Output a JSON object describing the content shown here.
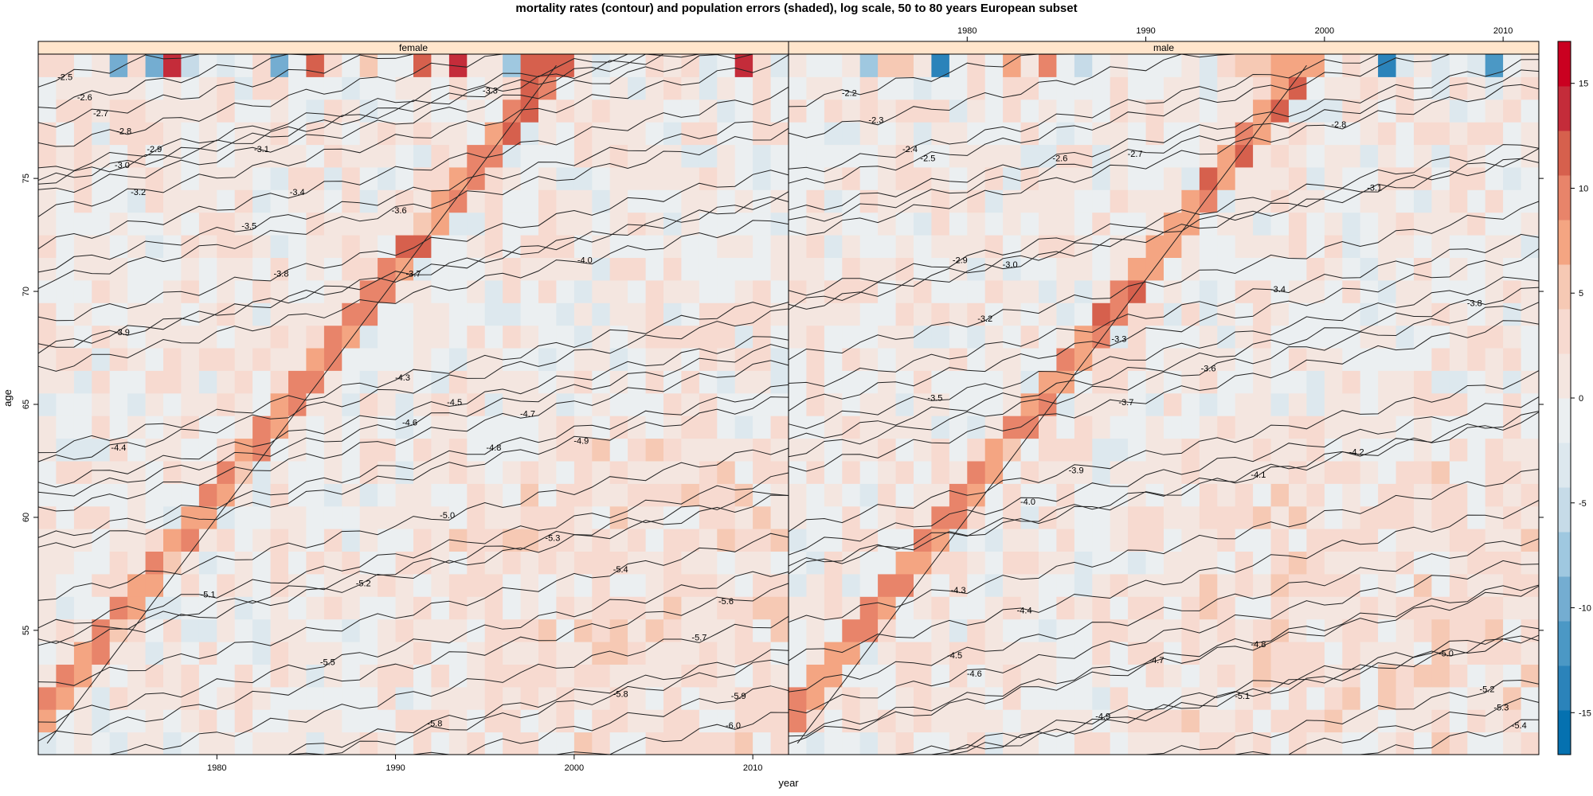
{
  "chart_data": {
    "type": "heatmap",
    "title": "mortality rates (contour) and population errors (shaded), log scale, 50 to 80 years European subset",
    "xlabel": "year",
    "ylabel": "age",
    "xlim": [
      1970,
      2012
    ],
    "ylim": [
      49.5,
      80.5
    ],
    "x_ticks": [
      1980,
      1990,
      2000,
      2010
    ],
    "y_ticks": [
      55,
      60,
      65,
      70,
      75
    ],
    "panels": [
      {
        "name": "female",
        "bottom_axis_ticks": true,
        "contour_labels": [
          {
            "label": "-2.5",
            "x": 1971.5,
            "y": 79.5
          },
          {
            "label": "-2.6",
            "x": 1972.6,
            "y": 78.6
          },
          {
            "label": "-2.7",
            "x": 1973.5,
            "y": 77.9
          },
          {
            "label": "-2.8",
            "x": 1974.8,
            "y": 77.1
          },
          {
            "label": "-2.9",
            "x": 1976.5,
            "y": 76.3
          },
          {
            "label": "-3.0",
            "x": 1974.7,
            "y": 75.6
          },
          {
            "label": "-3.1",
            "x": 1982.5,
            "y": 76.3
          },
          {
            "label": "-3.2",
            "x": 1975.6,
            "y": 74.4
          },
          {
            "label": "-3.3",
            "x": 1995.3,
            "y": 78.9
          },
          {
            "label": "-3.4",
            "x": 1984.5,
            "y": 74.4
          },
          {
            "label": "-3.5",
            "x": 1981.8,
            "y": 72.9
          },
          {
            "label": "-3.6",
            "x": 1990.2,
            "y": 73.6
          },
          {
            "label": "-3.7",
            "x": 1991.0,
            "y": 70.8
          },
          {
            "label": "-3.8",
            "x": 1983.6,
            "y": 70.8
          },
          {
            "label": "-3.9",
            "x": 1974.7,
            "y": 68.2
          },
          {
            "label": "-4.0",
            "x": 2000.6,
            "y": 71.4
          },
          {
            "label": "-4.3",
            "x": 1990.4,
            "y": 66.2
          },
          {
            "label": "-4.4",
            "x": 1974.5,
            "y": 63.1
          },
          {
            "label": "-4.5",
            "x": 1993.3,
            "y": 65.1
          },
          {
            "label": "-4.6",
            "x": 1990.8,
            "y": 64.2
          },
          {
            "label": "-4.7",
            "x": 1997.4,
            "y": 64.6
          },
          {
            "label": "-4.8",
            "x": 1995.5,
            "y": 63.1
          },
          {
            "label": "-4.9",
            "x": 2000.4,
            "y": 63.4
          },
          {
            "label": "-5.0",
            "x": 1992.9,
            "y": 60.1
          },
          {
            "label": "-5.1",
            "x": 1979.5,
            "y": 56.6
          },
          {
            "label": "-5.2",
            "x": 1988.2,
            "y": 57.1
          },
          {
            "label": "-5.3",
            "x": 1998.8,
            "y": 59.1
          },
          {
            "label": "-5.4",
            "x": 2002.6,
            "y": 57.7
          },
          {
            "label": "-5.5",
            "x": 1986.2,
            "y": 53.6
          },
          {
            "label": "-5.6",
            "x": 2008.5,
            "y": 56.3
          },
          {
            "label": "-5.7",
            "x": 2007.0,
            "y": 54.7
          },
          {
            "label": "-5.8",
            "x": 2002.6,
            "y": 52.2
          },
          {
            "label": "-5.8",
            "x": 1992.2,
            "y": 50.9
          },
          {
            "label": "-5.9",
            "x": 2009.2,
            "y": 52.1
          },
          {
            "label": "-6.0",
            "x": 2008.9,
            "y": 50.8
          }
        ]
      },
      {
        "name": "male",
        "top_axis_ticks": true,
        "contour_labels": [
          {
            "label": "-2.2",
            "x": 1973.4,
            "y": 78.8
          },
          {
            "label": "-2.3",
            "x": 1974.9,
            "y": 77.6
          },
          {
            "label": "-2.4",
            "x": 1976.8,
            "y": 76.3
          },
          {
            "label": "-2.5",
            "x": 1977.8,
            "y": 75.9
          },
          {
            "label": "-2.6",
            "x": 1985.2,
            "y": 75.9
          },
          {
            "label": "-2.7",
            "x": 1989.4,
            "y": 76.1
          },
          {
            "label": "-2.8",
            "x": 2000.8,
            "y": 77.4
          },
          {
            "label": "-2.9",
            "x": 1979.6,
            "y": 71.4
          },
          {
            "label": "-3.0",
            "x": 1982.4,
            "y": 71.2
          },
          {
            "label": "-3.1",
            "x": 2002.8,
            "y": 74.6
          },
          {
            "label": "-3.2",
            "x": 1981.0,
            "y": 68.8
          },
          {
            "label": "-3.3",
            "x": 1988.5,
            "y": 67.9
          },
          {
            "label": "-3.4",
            "x": 1997.4,
            "y": 70.1
          },
          {
            "label": "-3.5",
            "x": 1978.2,
            "y": 65.3
          },
          {
            "label": "-3.6",
            "x": 1993.5,
            "y": 66.6
          },
          {
            "label": "-3.7",
            "x": 1988.9,
            "y": 65.1
          },
          {
            "label": "-3.8",
            "x": 2008.4,
            "y": 69.5
          },
          {
            "label": "-3.9",
            "x": 1986.1,
            "y": 62.1
          },
          {
            "label": "-4.0",
            "x": 1983.4,
            "y": 60.7
          },
          {
            "label": "-4.1",
            "x": 1996.3,
            "y": 61.9
          },
          {
            "label": "-4.2",
            "x": 2001.8,
            "y": 62.9
          },
          {
            "label": "-4.3",
            "x": 1979.5,
            "y": 56.8
          },
          {
            "label": "-4.4",
            "x": 1983.2,
            "y": 55.9
          },
          {
            "label": "-4.5",
            "x": 1979.3,
            "y": 53.9
          },
          {
            "label": "-4.6",
            "x": 1980.4,
            "y": 53.1
          },
          {
            "label": "-4.7",
            "x": 1990.6,
            "y": 53.7
          },
          {
            "label": "-4.8",
            "x": 1996.3,
            "y": 54.4
          },
          {
            "label": "-4.9",
            "x": 1987.6,
            "y": 51.2
          },
          {
            "label": "-5.0",
            "x": 2006.8,
            "y": 54.0
          },
          {
            "label": "-5.1",
            "x": 1995.4,
            "y": 52.1
          },
          {
            "label": "-5.2",
            "x": 2009.1,
            "y": 52.4
          },
          {
            "label": "-5.3",
            "x": 2009.9,
            "y": 51.6
          },
          {
            "label": "-5.4",
            "x": 2010.9,
            "y": 50.8
          }
        ]
      }
    ],
    "colorkey": {
      "ticks": [
        15,
        10,
        5,
        0,
        -5,
        -10,
        -15
      ],
      "range": [
        -17,
        17
      ],
      "palette": [
        "#0571b0",
        "#2b83ba",
        "#4b98c5",
        "#74add1",
        "#9fc8e0",
        "#c6dbe8",
        "#dde8ee",
        "#ebeff1",
        "#f4e6e0",
        "#f7dad0",
        "#f6c9b4",
        "#f4a582",
        "#e8846a",
        "#d6604d",
        "#c42c3a",
        "#ca0020"
      ]
    },
    "grid": false,
    "legend_position": "right"
  }
}
